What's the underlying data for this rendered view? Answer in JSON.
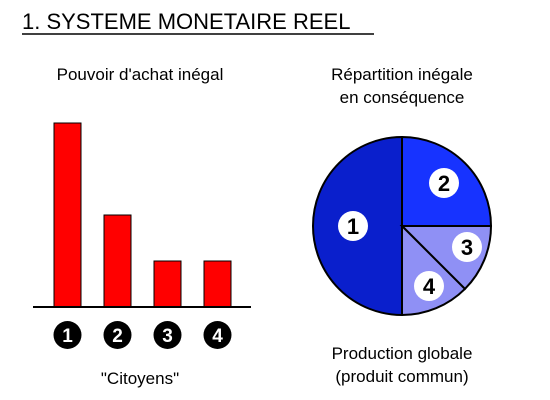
{
  "title": "1. SYSTEME MONETAIRE REEL",
  "left_panel": {
    "heading": "Pouvoir d'achat inégal",
    "caption": "\"Citoyens\""
  },
  "right_panel": {
    "heading_line1": "Répartition inégale",
    "heading_line2": "en conséquence",
    "caption_line1": "Production globale",
    "caption_line2": "(produit commun)"
  },
  "colors": {
    "bar": "#ff0000",
    "pie_dark": "#0a1fcc",
    "pie_mid": "#1733ff",
    "pie_light": "#8f90f5",
    "badge": "#000000"
  },
  "chart_data": [
    {
      "type": "bar",
      "categories": [
        "1",
        "2",
        "3",
        "4"
      ],
      "values": [
        100,
        50,
        25,
        25
      ],
      "grid": false,
      "legend": "none"
    },
    {
      "type": "pie",
      "labels": [
        "1",
        "2",
        "3",
        "4"
      ],
      "values": [
        50,
        25,
        12.5,
        12.5
      ]
    }
  ]
}
